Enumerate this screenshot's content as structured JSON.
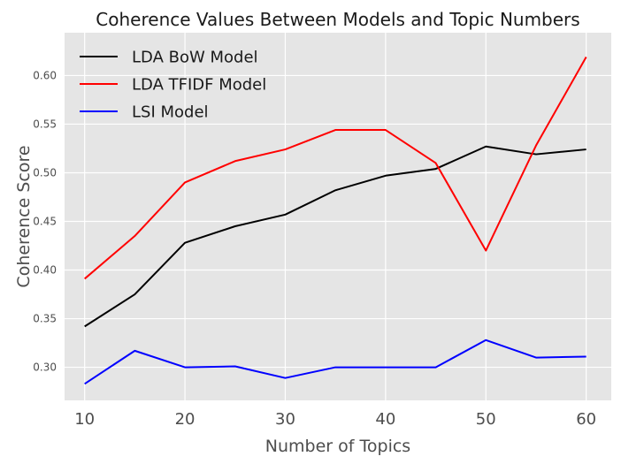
{
  "chart_data": {
    "type": "line",
    "title": "Coherence Values Between Models and Topic Numbers",
    "xlabel": "Number of Topics",
    "ylabel": "Coherence Score",
    "x": [
      10,
      15,
      20,
      25,
      30,
      35,
      40,
      45,
      50,
      55,
      60
    ],
    "xlim": [
      8,
      62.5
    ],
    "ylim": [
      0.266,
      0.644
    ],
    "xticks": [
      "10",
      "20",
      "30",
      "40",
      "50",
      "60"
    ],
    "yticks": [
      "0.30",
      "0.35",
      "0.40",
      "0.45",
      "0.50",
      "0.55",
      "0.60"
    ],
    "grid": true,
    "legend_position": "top-left",
    "background": "#e5e5e5",
    "series": [
      {
        "name": "LDA BoW Model",
        "color": "#000000",
        "values": [
          0.342,
          0.375,
          0.428,
          0.445,
          0.457,
          0.482,
          0.497,
          0.504,
          0.527,
          0.519,
          0.524
        ]
      },
      {
        "name": "LDA TFIDF Model",
        "color": "#ff0000",
        "values": [
          0.391,
          0.435,
          0.49,
          0.512,
          0.524,
          0.544,
          0.544,
          0.51,
          0.42,
          0.528,
          0.619
        ]
      },
      {
        "name": "LSI Model",
        "color": "#0000ff",
        "values": [
          0.283,
          0.317,
          0.3,
          0.301,
          0.289,
          0.3,
          0.3,
          0.3,
          0.328,
          0.31,
          0.311
        ]
      }
    ]
  }
}
